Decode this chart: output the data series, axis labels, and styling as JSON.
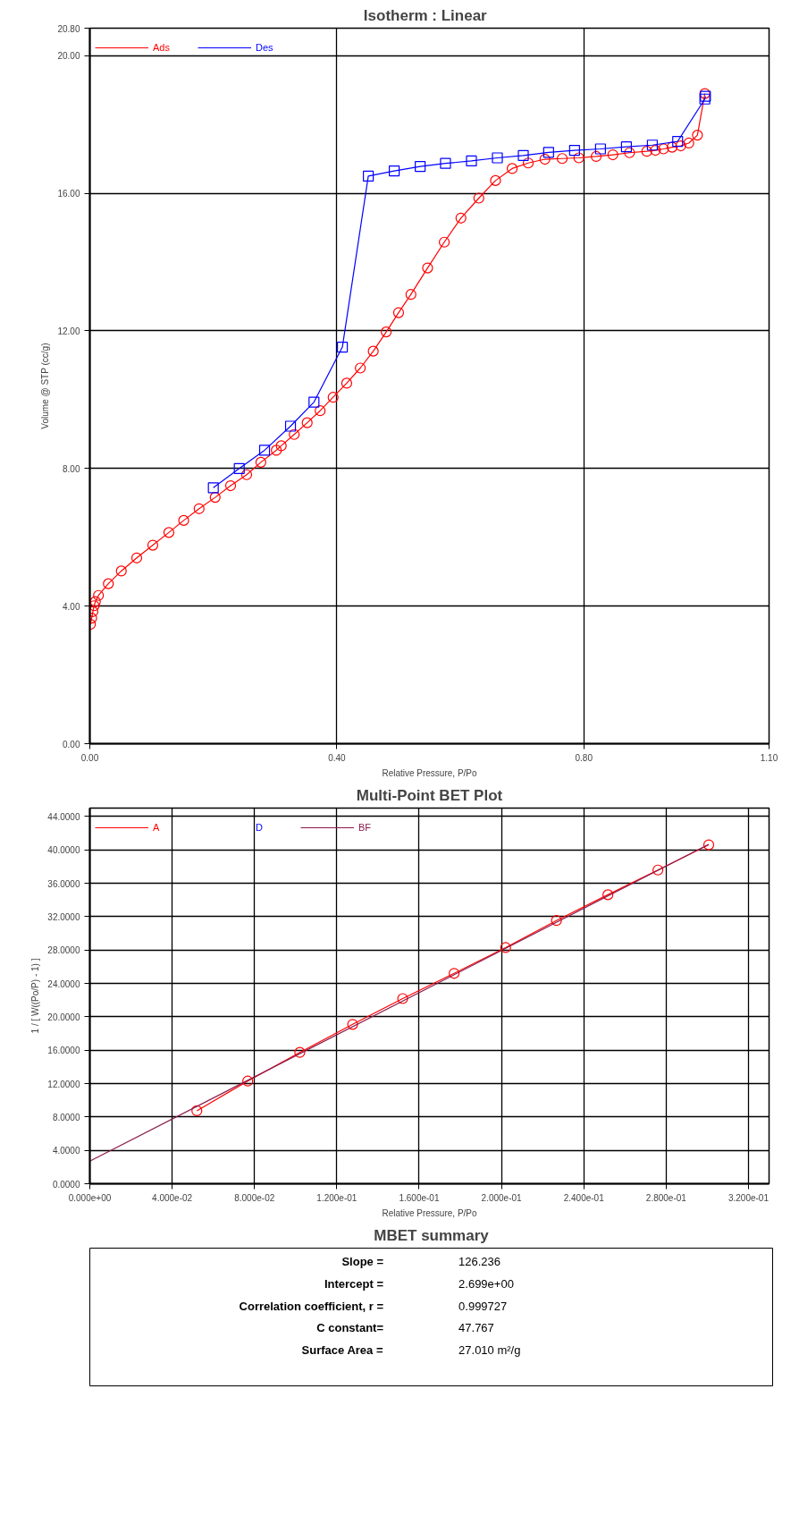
{
  "chart_data": [
    {
      "type": "line",
      "title": "Isotherm :   Linear",
      "xlabel": "Relative Pressure, P/Po",
      "ylabel": "Volume @ STP (cc/g)",
      "xlim": [
        0,
        1.1
      ],
      "ylim": [
        0,
        20.8
      ],
      "xticks": [
        {
          "value": 0,
          "label": "0.00"
        },
        {
          "value": 0.4,
          "label": "0.40"
        },
        {
          "value": 0.8,
          "label": "0.80"
        },
        {
          "value": 1.1,
          "label": "1.10"
        }
      ],
      "yticks": [
        {
          "value": 0,
          "label": "0.00"
        },
        {
          "value": 4,
          "label": "4.00"
        },
        {
          "value": 8,
          "label": "8.00"
        },
        {
          "value": 12,
          "label": "12.00"
        },
        {
          "value": 16,
          "label": "16.00"
        },
        {
          "value": 20,
          "label": "20.00"
        },
        {
          "value": 20.8,
          "label": "20.80"
        }
      ],
      "grid": true,
      "legend": "top left",
      "series": [
        {
          "name": "Ads",
          "color": "#ff0000",
          "marker": "circle",
          "x": [
            0.001,
            0.003,
            0.005,
            0.007,
            0.009,
            0.014,
            0.03,
            0.051,
            0.076,
            0.102,
            0.128,
            0.152,
            0.177,
            0.203,
            0.228,
            0.254,
            0.277,
            0.302,
            0.31,
            0.331,
            0.352,
            0.373,
            0.394,
            0.416,
            0.438,
            0.459,
            0.48,
            0.5,
            0.52,
            0.547,
            0.574,
            0.601,
            0.63,
            0.657,
            0.684,
            0.71,
            0.737,
            0.765,
            0.792,
            0.82,
            0.847,
            0.874,
            0.902,
            0.916,
            0.929,
            0.943,
            0.957,
            0.97,
            0.984,
            0.996
          ],
          "values": [
            3.47,
            3.65,
            3.84,
            4.01,
            4.13,
            4.31,
            4.65,
            5.02,
            5.4,
            5.77,
            6.14,
            6.49,
            6.83,
            7.16,
            7.5,
            7.82,
            8.18,
            8.53,
            8.66,
            8.99,
            9.33,
            9.68,
            10.07,
            10.48,
            10.92,
            11.41,
            11.97,
            12.53,
            13.06,
            13.83,
            14.58,
            15.28,
            15.86,
            16.37,
            16.72,
            16.88,
            16.99,
            17.01,
            17.03,
            17.07,
            17.12,
            17.18,
            17.22,
            17.25,
            17.29,
            17.34,
            17.38,
            17.46,
            17.69,
            18.9
          ]
        },
        {
          "name": "Des",
          "color": "#0000ff",
          "marker": "square",
          "x": [
            0.997,
            0.996,
            0.952,
            0.911,
            0.869,
            0.827,
            0.785,
            0.743,
            0.702,
            0.66,
            0.618,
            0.576,
            0.535,
            0.493,
            0.451,
            0.409,
            0.363,
            0.325,
            0.283,
            0.242,
            0.2
          ],
          "values": [
            18.82,
            18.74,
            17.51,
            17.4,
            17.35,
            17.29,
            17.25,
            17.19,
            17.1,
            17.03,
            16.94,
            16.87,
            16.78,
            16.65,
            16.5,
            11.53,
            9.93,
            9.23,
            8.53,
            8.0,
            7.44
          ]
        }
      ]
    },
    {
      "type": "line",
      "title": "Multi-Point BET Plot",
      "xlabel": "Relative Pressure, P/Po",
      "ylabel": "1 / [ W((Po/P) - 1) ]",
      "xlim": [
        0,
        0.33
      ],
      "ylim": [
        0,
        45
      ],
      "xticks": [
        {
          "value": 0,
          "label": "0.000e+00"
        },
        {
          "value": 0.04,
          "label": "4.000e-02"
        },
        {
          "value": 0.08,
          "label": "8.000e-02"
        },
        {
          "value": 0.12,
          "label": "1.200e-01"
        },
        {
          "value": 0.16,
          "label": "1.600e-01"
        },
        {
          "value": 0.2,
          "label": "2.000e-01"
        },
        {
          "value": 0.24,
          "label": "2.400e-01"
        },
        {
          "value": 0.28,
          "label": "2.800e-01"
        },
        {
          "value": 0.32,
          "label": "3.200e-01"
        }
      ],
      "yticks": [
        {
          "value": 0,
          "label": "0.0000"
        },
        {
          "value": 4,
          "label": "4.0000"
        },
        {
          "value": 8,
          "label": "8.0000"
        },
        {
          "value": 12,
          "label": "12.0000"
        },
        {
          "value": 16,
          "label": "16.0000"
        },
        {
          "value": 20,
          "label": "20.0000"
        },
        {
          "value": 24,
          "label": "24.0000"
        },
        {
          "value": 28,
          "label": "28.0000"
        },
        {
          "value": 32,
          "label": "32.0000"
        },
        {
          "value": 36,
          "label": "36.0000"
        },
        {
          "value": 40,
          "label": "40.0000"
        },
        {
          "value": 44,
          "label": "44.0000"
        }
      ],
      "grid": true,
      "legend": "top left",
      "series": [
        {
          "name": "A",
          "color": "#ff0000",
          "marker": "circle",
          "x": [
            0.052,
            0.0767,
            0.102,
            0.1277,
            0.152,
            0.177,
            0.202,
            0.2267,
            0.2517,
            0.276,
            0.3007
          ],
          "values": [
            8.74,
            12.3,
            15.73,
            19.09,
            22.18,
            25.2,
            28.29,
            31.53,
            34.62,
            37.58,
            40.6
          ]
        },
        {
          "name": "D",
          "color": "#0000ff",
          "marker": "square"
        },
        {
          "name": "BF",
          "color": "#8b1a4a",
          "marker": "none",
          "x": [
            0,
            0.3007
          ],
          "values": [
            2.699,
            40.66
          ]
        }
      ]
    },
    {
      "type": "other",
      "title": "MBET summary",
      "annotations": [
        "Slope =",
        "126.236",
        "Intercept =",
        "2.699e+00",
        "Correlation coefficient, r =",
        "0.999727",
        "C constant=",
        "47.767",
        "Surface Area =",
        "27.010 m²/g"
      ]
    }
  ]
}
